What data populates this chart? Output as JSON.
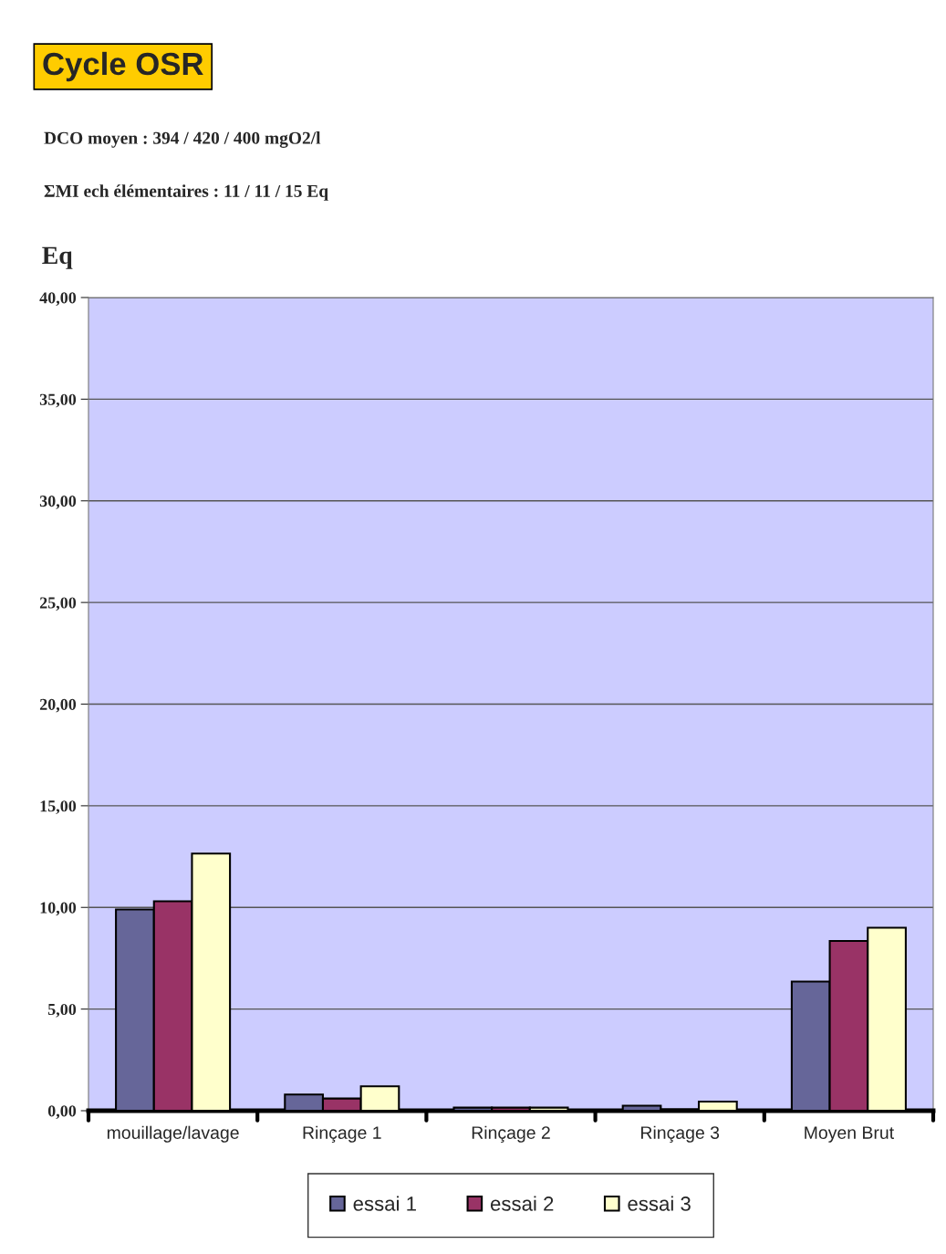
{
  "chart_data": {
    "type": "bar",
    "title": "Cycle OSR",
    "annotations": [
      "DCO moyen : 394 / 420 / 400 mgO2/l",
      "ΣMI ech élémentaires : 11 / 11 / 15 Eq"
    ],
    "ylabel": "Eq",
    "categories": [
      "mouillage/lavage",
      "Rinçage 1",
      "Rinçage 2",
      "Rinçage 3",
      "Moyen Brut"
    ],
    "series": [
      {
        "name": "essai 1",
        "color": "#666699",
        "values": [
          9.9,
          0.8,
          0.15,
          0.25,
          6.35
        ]
      },
      {
        "name": "essai 2",
        "color": "#993366",
        "values": [
          10.3,
          0.6,
          0.15,
          0.07,
          8.35
        ]
      },
      {
        "name": "essai 3",
        "color": "#ffffcc",
        "values": [
          12.65,
          1.2,
          0.15,
          0.45,
          9.0
        ]
      }
    ],
    "ylim": [
      0,
      40
    ],
    "yticks": [
      {
        "value": 0,
        "label": "0,00"
      },
      {
        "value": 5,
        "label": "5,00"
      },
      {
        "value": 10,
        "label": "10,00"
      },
      {
        "value": 15,
        "label": "15,00"
      },
      {
        "value": 20,
        "label": "20,00"
      },
      {
        "value": 25,
        "label": "25,00"
      },
      {
        "value": 30,
        "label": "30,00"
      },
      {
        "value": 35,
        "label": "35,00"
      },
      {
        "value": 40,
        "label": "40,00"
      }
    ],
    "grid": "y",
    "legend": "bottom"
  }
}
